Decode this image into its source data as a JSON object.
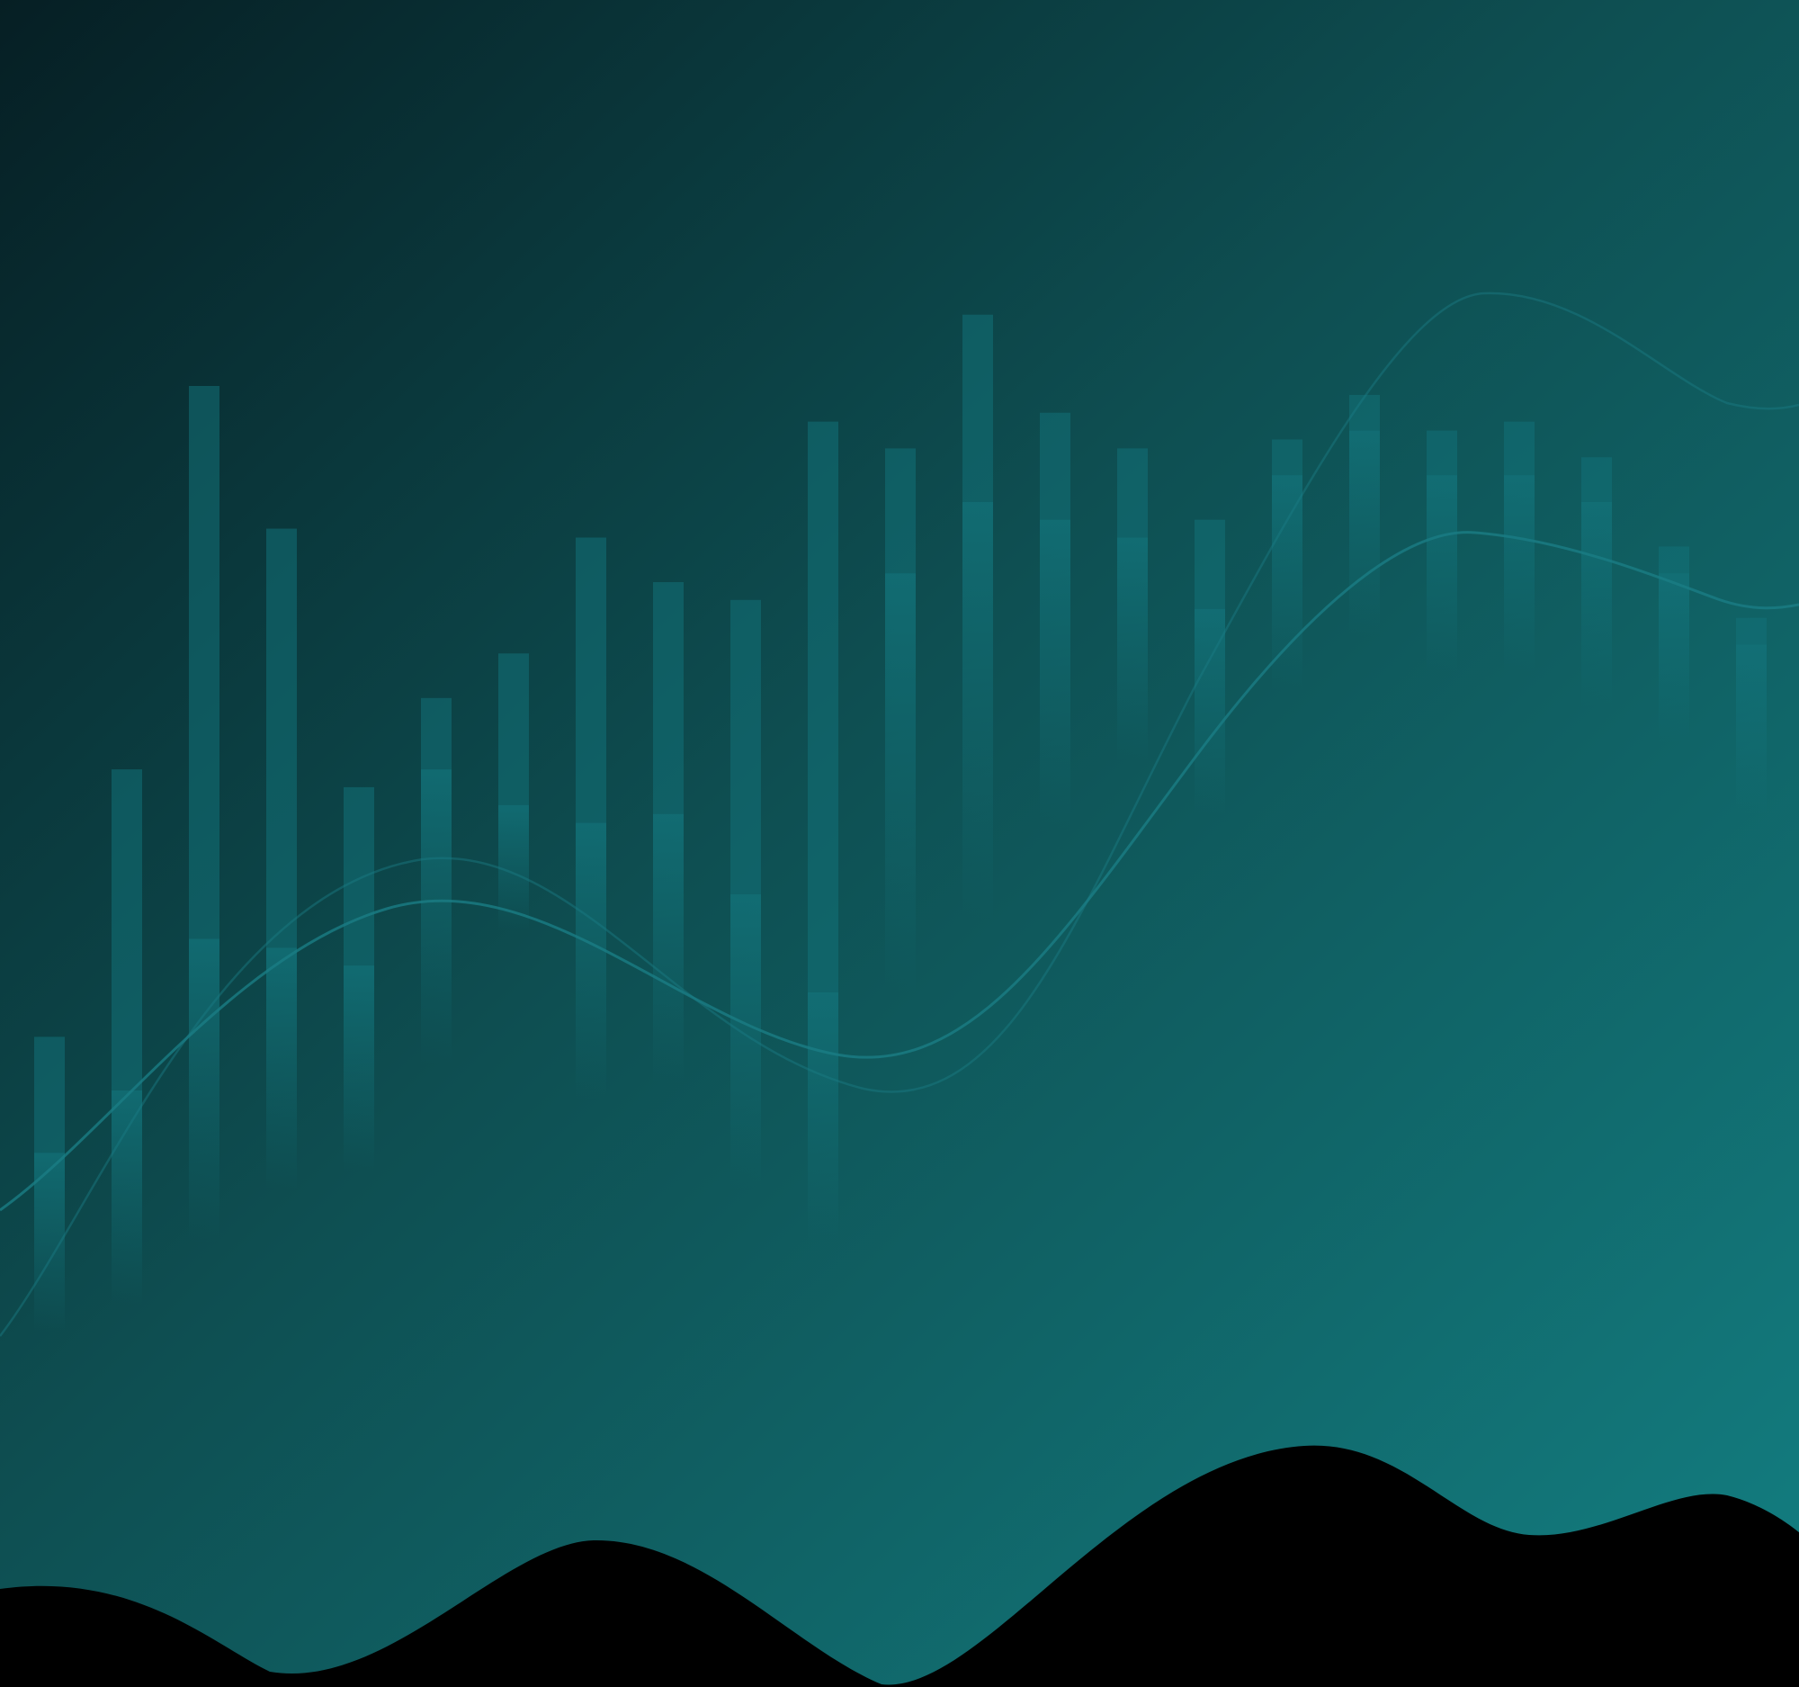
{
  "colors": {
    "gradient_dark": "#061f24",
    "gradient_mid": "#0e4f52",
    "gradient_light": "#137f82",
    "candle": "#127178",
    "wick": "#1a8a90",
    "curve": "#1a7d85",
    "wave": "#000000"
  },
  "chart_data": {
    "type": "candlestick",
    "candles": [
      {
        "open": 10,
        "close": 13,
        "low": 2,
        "high": 26
      },
      {
        "open": 15,
        "close": 20,
        "low": 5,
        "high": 56
      },
      {
        "open": 25,
        "close": 37,
        "low": 12,
        "high": 99
      },
      {
        "open": 31,
        "close": 36,
        "low": 18,
        "high": 83
      },
      {
        "open": 30,
        "close": 34,
        "low": 20,
        "high": 54
      },
      {
        "open": 48,
        "close": 56,
        "low": 32,
        "high": 64
      },
      {
        "open": 51,
        "close": 52,
        "low": 47,
        "high": 69
      },
      {
        "open": 40,
        "close": 50,
        "low": 28,
        "high": 82
      },
      {
        "open": 43,
        "close": 51,
        "low": 30,
        "high": 77
      },
      {
        "open": 32,
        "close": 42,
        "low": 18,
        "high": 75
      },
      {
        "open": 24,
        "close": 31,
        "low": 12,
        "high": 95
      },
      {
        "open": 48,
        "close": 78,
        "low": 40,
        "high": 92
      },
      {
        "open": 67,
        "close": 86,
        "low": 48,
        "high": 107
      },
      {
        "open": 74,
        "close": 84,
        "low": 58,
        "high": 96
      },
      {
        "open": 80,
        "close": 82,
        "low": 66,
        "high": 92
      },
      {
        "open": 73,
        "close": 74,
        "low": 60,
        "high": 84
      },
      {
        "open": 84,
        "close": 89,
        "low": 74,
        "high": 93
      },
      {
        "open": 89,
        "close": 94,
        "low": 80,
        "high": 98
      },
      {
        "open": 85,
        "close": 89,
        "low": 76,
        "high": 94
      },
      {
        "open": 87,
        "close": 89,
        "low": 76,
        "high": 95
      },
      {
        "open": 83,
        "close": 86,
        "low": 72,
        "high": 91
      },
      {
        "open": 76,
        "close": 78,
        "low": 68,
        "high": 81
      },
      {
        "open": 68,
        "close": 70,
        "low": 60,
        "high": 73
      }
    ],
    "ylim": [
      0,
      110
    ],
    "grid": false
  }
}
